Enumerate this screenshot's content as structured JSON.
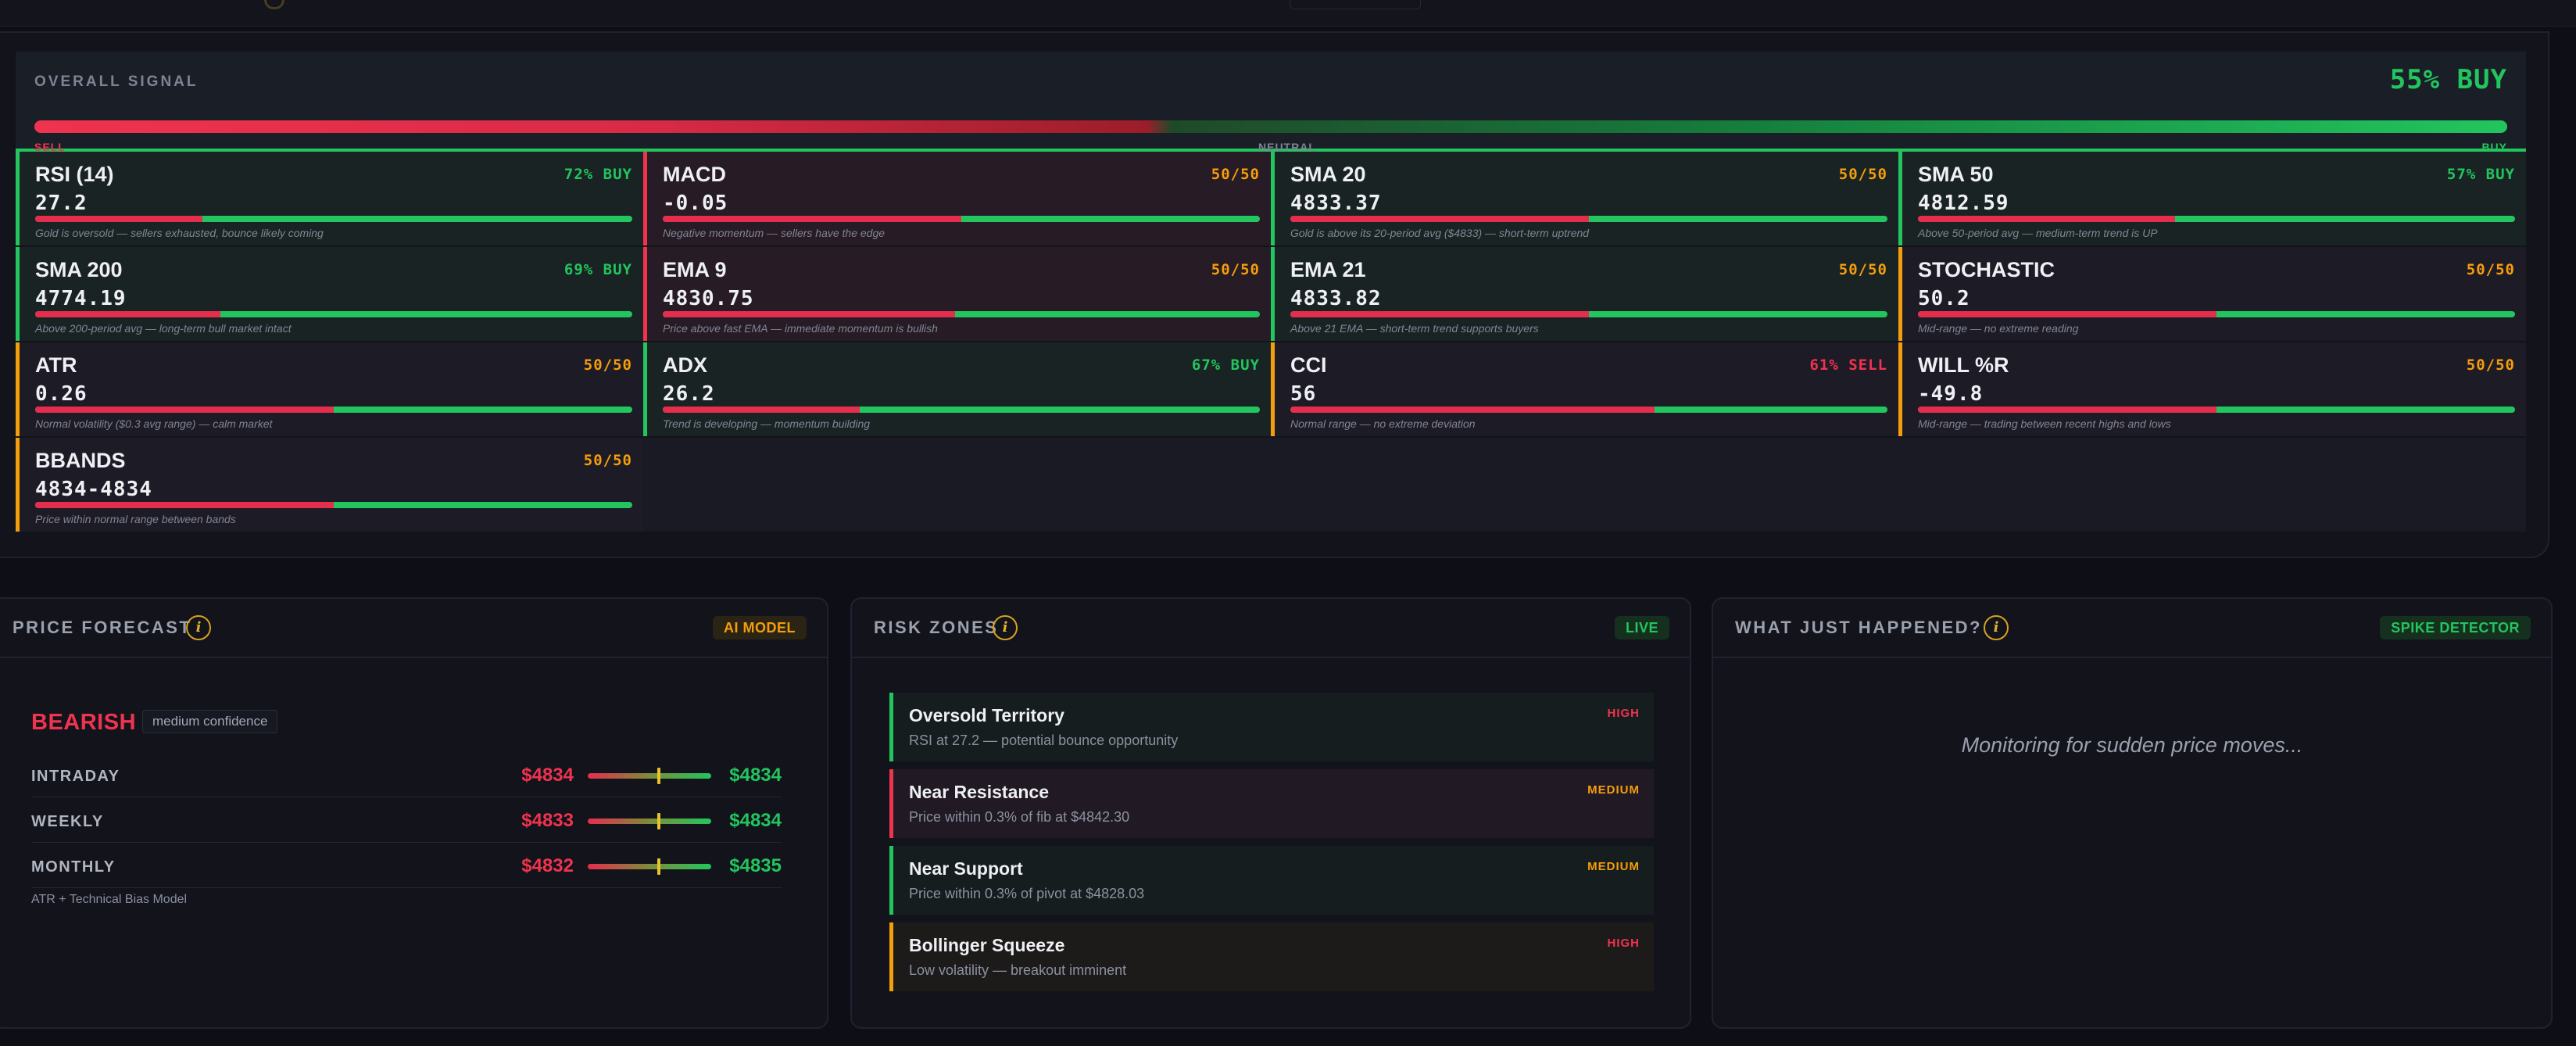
{
  "signal": {
    "label": "OVERALL SIGNAL",
    "value": "55% BUY",
    "buy_fraction": 0.55,
    "sell_label": "SELL",
    "neutral_label": "NEUTRAL",
    "buy_label": "BUY"
  },
  "indicators": [
    {
      "name": "RSI (14)",
      "value": "27.2",
      "signal": "72% BUY",
      "tone": "buy",
      "sell_fraction": 0.28,
      "desc": "Gold is oversold — sellers exhausted, bounce likely coming"
    },
    {
      "name": "MACD",
      "value": "-0.05",
      "signal": "50/50",
      "tone": "sell",
      "sell_fraction": 0.5,
      "desc": "Negative momentum — sellers have the edge"
    },
    {
      "name": "SMA 20",
      "value": "4833.37",
      "signal": "50/50",
      "tone": "buy",
      "sell_fraction": 0.5,
      "desc": "Gold is above its 20-period avg ($4833) — short-term uptrend"
    },
    {
      "name": "SMA 50",
      "value": "4812.59",
      "signal": "57% BUY",
      "tone": "buy",
      "sell_fraction": 0.43,
      "desc": "Above 50-period avg — medium-term trend is UP"
    },
    {
      "name": "SMA 200",
      "value": "4774.19",
      "signal": "69% BUY",
      "tone": "buy",
      "sell_fraction": 0.31,
      "desc": "Above 200-period avg — long-term bull market intact"
    },
    {
      "name": "EMA 9",
      "value": "4830.75",
      "signal": "50/50",
      "tone": "sell",
      "sell_fraction": 0.49,
      "desc": "Price above fast EMA — immediate momentum is bullish"
    },
    {
      "name": "EMA 21",
      "value": "4833.82",
      "signal": "50/50",
      "tone": "buy",
      "sell_fraction": 0.5,
      "desc": "Above 21 EMA — short-term trend supports buyers"
    },
    {
      "name": "STOCHASTIC",
      "value": "50.2",
      "signal": "50/50",
      "tone": "neu",
      "sell_fraction": 0.5,
      "desc": "Mid-range — no extreme reading"
    },
    {
      "name": "ATR",
      "value": "0.26",
      "signal": "50/50",
      "tone": "neu",
      "sell_fraction": 0.5,
      "desc": "Normal volatility ($0.3 avg range) — calm market"
    },
    {
      "name": "ADX",
      "value": "26.2",
      "signal": "67% BUY",
      "tone": "buy",
      "sell_fraction": 0.33,
      "desc": "Trend is developing — momentum building"
    },
    {
      "name": "CCI",
      "value": "56",
      "signal": "61% SELL",
      "tone": "neu",
      "sell_fraction": 0.61,
      "desc": "Normal range — no extreme deviation"
    },
    {
      "name": "WILL %R",
      "value": "-49.8",
      "signal": "50/50",
      "tone": "neu",
      "sell_fraction": 0.5,
      "desc": "Mid-range — trading between recent highs and lows"
    },
    {
      "name": "BBANDS",
      "value": "4834-4834",
      "signal": "50/50",
      "tone": "neu",
      "sell_fraction": 0.5,
      "desc": "Price within normal range between bands"
    }
  ],
  "forecast": {
    "title": "PRICE FORECAST",
    "info": "i",
    "badge": "AI MODEL",
    "direction": "BEARISH",
    "confidence": "medium confidence",
    "rows": [
      {
        "period": "INTRADAY",
        "low": "$4834",
        "high": "$4834"
      },
      {
        "period": "WEEKLY",
        "low": "$4833",
        "high": "$4834"
      },
      {
        "period": "MONTHLY",
        "low": "$4832",
        "high": "$4835"
      }
    ],
    "model": "ATR + Technical Bias Model"
  },
  "risk": {
    "title": "RISK ZONES",
    "info": "i",
    "badge": "LIVE",
    "zones": [
      {
        "title": "Oversold Territory",
        "desc": "RSI at 27.2 — potential bounce opportunity",
        "level": "HIGH",
        "color": "#22c55e"
      },
      {
        "title": "Near Resistance",
        "desc": "Price within 0.3% of fib at $4842.30",
        "level": "MEDIUM",
        "color": "#f0334f"
      },
      {
        "title": "Near Support",
        "desc": "Price within 0.3% of pivot at $4828.03",
        "level": "MEDIUM",
        "color": "#22c55e"
      },
      {
        "title": "Bollinger Squeeze",
        "desc": "Low volatility — breakout imminent",
        "level": "HIGH",
        "color": "#f59e0b"
      }
    ]
  },
  "happened": {
    "title": "WHAT JUST HAPPENED?",
    "info": "i",
    "badge": "SPIKE DETECTOR",
    "message": "Monitoring for sudden price moves..."
  }
}
